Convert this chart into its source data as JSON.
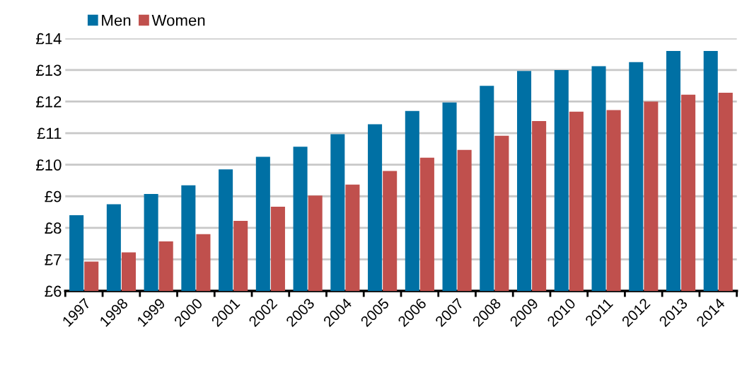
{
  "chart_data": {
    "type": "bar",
    "categories": [
      "1997",
      "1998",
      "1999",
      "2000",
      "2001",
      "2002",
      "2003",
      "2004",
      "2005",
      "2006",
      "2007",
      "2008",
      "2009",
      "2010",
      "2011",
      "2012",
      "2013",
      "2014"
    ],
    "series": [
      {
        "name": "Men",
        "color": "#0070a4",
        "values": [
          8.4,
          8.75,
          9.07,
          9.35,
          9.85,
          10.25,
          10.57,
          10.97,
          11.28,
          11.7,
          11.97,
          12.5,
          12.97,
          13.0,
          13.12,
          13.25,
          13.6,
          13.6
        ]
      },
      {
        "name": "Women",
        "color": "#c0504d",
        "values": [
          6.93,
          7.22,
          7.57,
          7.8,
          8.22,
          8.67,
          9.02,
          9.37,
          9.8,
          10.22,
          10.47,
          10.92,
          11.38,
          11.68,
          11.73,
          12.0,
          12.22,
          12.28
        ]
      }
    ],
    "ylim": [
      6,
      14
    ],
    "yticks": [
      {
        "value": 6,
        "label": "£6"
      },
      {
        "value": 7,
        "label": "£7"
      },
      {
        "value": 8,
        "label": "£8"
      },
      {
        "value": 9,
        "label": "£9"
      },
      {
        "value": 10,
        "label": "£10"
      },
      {
        "value": 11,
        "label": "£11"
      },
      {
        "value": 12,
        "label": "£12"
      },
      {
        "value": 13,
        "label": "£13"
      },
      {
        "value": 14,
        "label": "£14"
      }
    ],
    "grid": "y",
    "legend": "top left"
  }
}
